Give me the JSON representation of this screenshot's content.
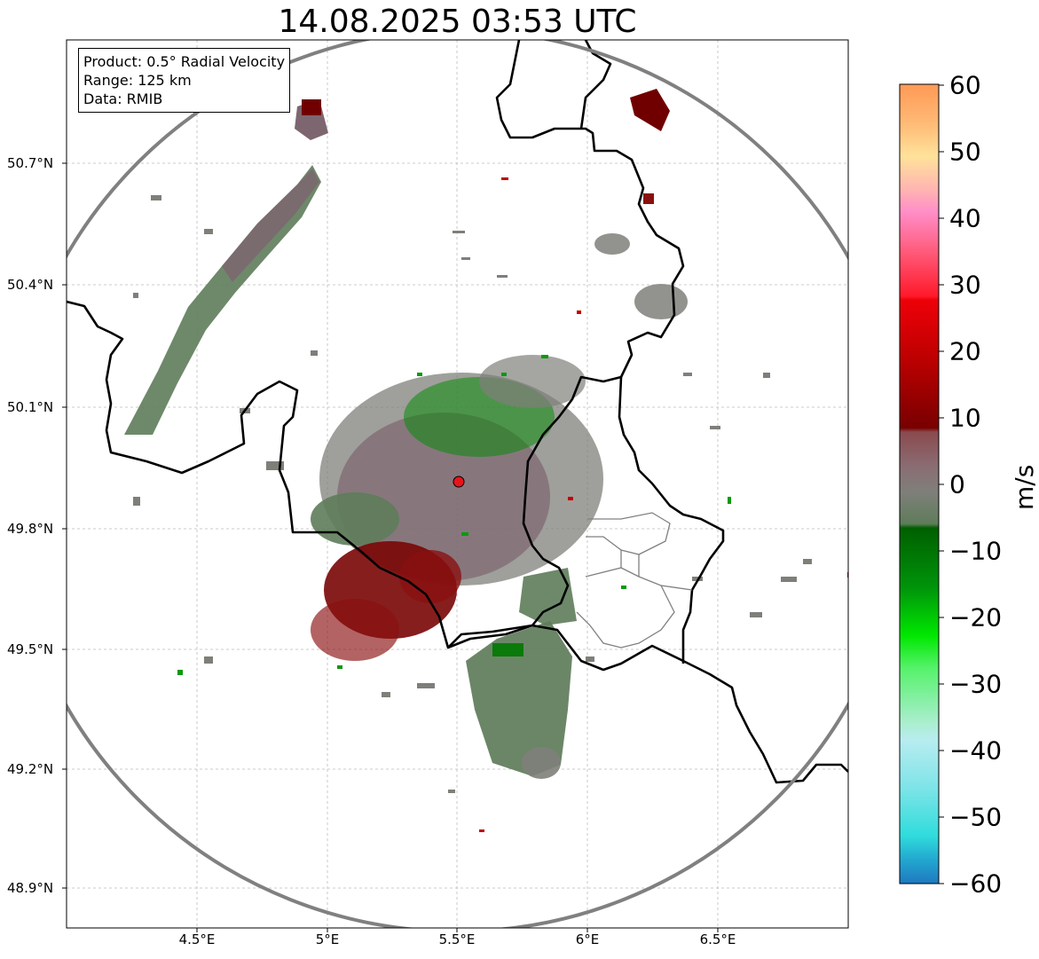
{
  "title": "14.08.2025 03:53 UTC",
  "info": {
    "product": "Product: 0.5° Radial Velocity",
    "range": "Range: 125 km",
    "data": "Data: RMIB"
  },
  "axes": {
    "y_ticks": [
      "50.7°N",
      "50.4°N",
      "50.1°N",
      "49.8°N",
      "49.5°N",
      "49.2°N",
      "48.9°N"
    ],
    "x_ticks": [
      "4.5°E",
      "5°E",
      "5.5°E",
      "6°E",
      "6.5°E"
    ]
  },
  "colorbar": {
    "label": "m/s",
    "ticks": [
      "60",
      "50",
      "40",
      "30",
      "20",
      "10",
      "0",
      "−10",
      "−20",
      "−30",
      "−40",
      "−50",
      "−60"
    ],
    "min": -60,
    "max": 60
  },
  "colors": {
    "ring": "#808080",
    "border": "#000000",
    "radar_marker": "#e8141b",
    "zero_velocity": "#5e7c5a",
    "outbound": "#8a1010",
    "inbound": "#0a9a0a"
  }
}
